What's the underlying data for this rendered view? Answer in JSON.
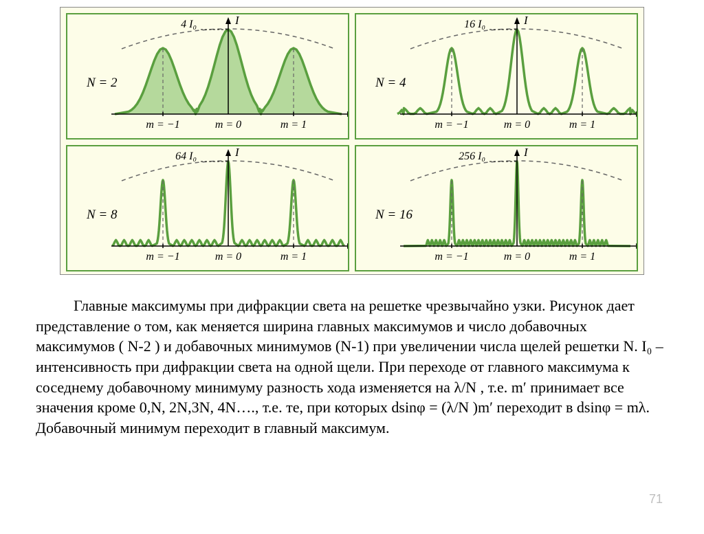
{
  "figure": {
    "background_color": "#fdfde8",
    "border_color": "#5a9f3f",
    "curve_color": "#5a9f3f",
    "fill_color": "#b5d99c",
    "axis_color": "#000000",
    "dash_color": "#666666",
    "envelope_color": "#666666",
    "font_family": "Times New Roman, serif",
    "panels": [
      {
        "N_label": "N = 2",
        "I_label": "I",
        "amp_label": "4 I₀",
        "N": 2,
        "peak_width": 50,
        "fill": true,
        "order_labels": [
          "m = −1",
          "m = 0",
          "m = 1"
        ]
      },
      {
        "N_label": "N = 4",
        "I_label": "I",
        "amp_label": "16 I₀",
        "N": 4,
        "peak_width": 22,
        "fill": false,
        "order_labels": [
          "m = −1",
          "m = 0",
          "m = 1"
        ]
      },
      {
        "N_label": "N = 8",
        "I_label": "I",
        "amp_label": "64 I₀",
        "N": 8,
        "peak_width": 9,
        "fill": false,
        "order_labels": [
          "m = −1",
          "m = 0",
          "m = 1"
        ]
      },
      {
        "N_label": "N = 16",
        "I_label": "I",
        "amp_label": "256 I₀",
        "N": 16,
        "peak_width": 5,
        "fill": false,
        "order_labels": [
          "m = −1",
          "m = 0",
          "m = 1"
        ]
      }
    ]
  },
  "text": {
    "p1a": "Главные максимумы при дифракции света на решетке чрезвычайно узки.",
    "p1b": "Рисунок дает представление о том, как меняется ширина главных максимумов  и число добавочных максимумов (  N-2 ) и добавочных минимумов (N-1) при увеличении числа щелей решетки N.   I₀ – интенсивность при дифракции света на одной щели. При переходе от главного максимума к соседнему добавочному минимуму разность хода изменяется на  λ/N , т.е. m′ принимает все значения кроме 0,N, 2N,3N, 4N…., т.е. те, при которых  dsinφ  = (λ/N )m′ переходит в dsinφ  =  mλ. Добавочный минимум переходит в главный максимум."
  },
  "page_number": "71"
}
